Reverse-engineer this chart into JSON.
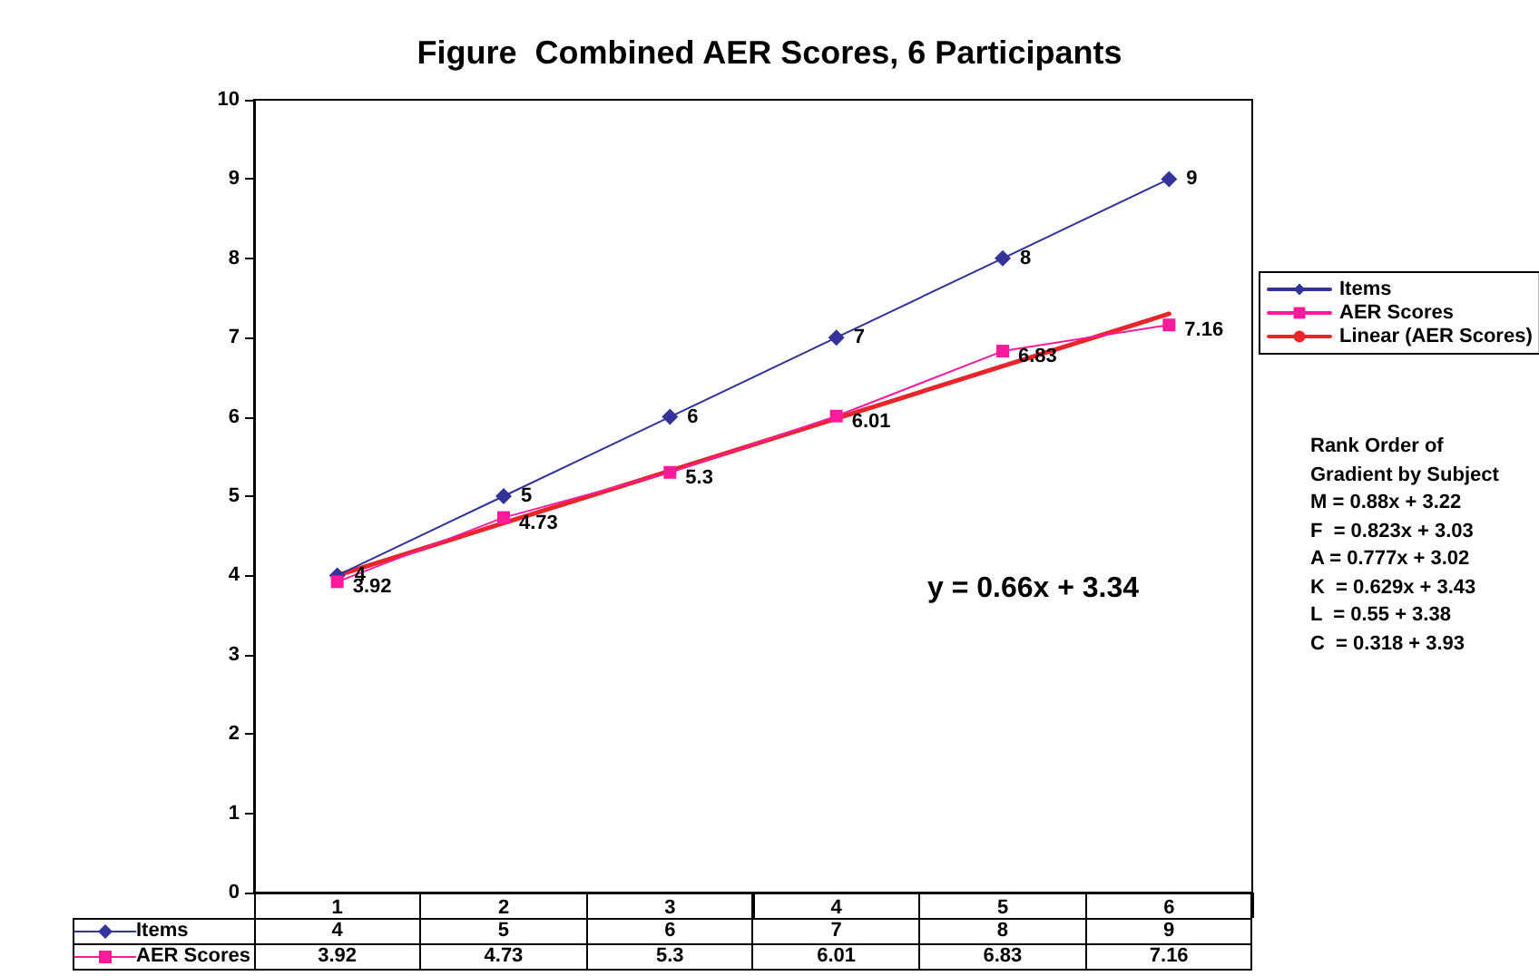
{
  "chart_data": {
    "type": "line",
    "title": "Figure  Combined AER Scores, 6 Participants",
    "categories": [
      "1",
      "2",
      "3",
      "4",
      "5",
      "6"
    ],
    "series": [
      {
        "name": "Items",
        "color": "#333399",
        "marker": "diamond",
        "values": [
          4,
          5,
          6,
          7,
          8,
          9
        ],
        "value_labels": [
          "4",
          "5",
          "6",
          "7",
          "8",
          "9"
        ]
      },
      {
        "name": "AER Scores",
        "color": "#ff1a9c",
        "marker": "square",
        "values": [
          3.92,
          4.73,
          5.3,
          6.01,
          6.83,
          7.16
        ],
        "value_labels": [
          "3.92",
          "4.73",
          "5.3",
          "6.01",
          "6.83",
          "7.16"
        ]
      },
      {
        "name": "Linear (AER Scores)",
        "color": "#e8252a",
        "marker": "none",
        "values": [
          4.0,
          4.66,
          5.32,
          5.98,
          6.64,
          7.3
        ]
      }
    ],
    "ylim": [
      0,
      10
    ],
    "yticks": [
      0,
      1,
      2,
      3,
      4,
      5,
      6,
      7,
      8,
      9,
      10
    ],
    "grid": false,
    "legend": "right",
    "annotations": [
      "y = 0.66x + 3.34",
      "Rank Order of",
      "Gradient by Subject",
      "M = 0.88x + 3.22",
      "F  = 0.823x + 3.03",
      "A = 0.777x + 3.02",
      "K  = 0.629x + 3.43",
      "L  = 0.55 + 3.38",
      "C  = 0.318 + 3.93"
    ]
  }
}
